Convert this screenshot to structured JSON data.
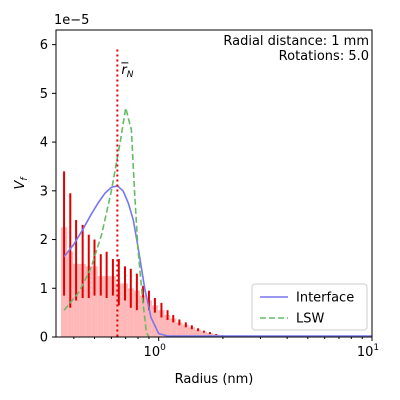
{
  "chart_data": {
    "type": "bar",
    "xlabel": "Radius (nm)",
    "ylabel": "V_f",
    "y_offset_text": "1e−5",
    "xscale": "log",
    "xlim": [
      0.33,
      10
    ],
    "ylim": [
      0,
      6.3
    ],
    "y_ticks": [
      "0",
      "1",
      "2",
      "3",
      "4",
      "5",
      "6"
    ],
    "x_ticks": [
      {
        "value": 1,
        "label": "10",
        "exp": "0"
      },
      {
        "value": 10,
        "label": "10",
        "exp": "1"
      }
    ],
    "annotation_lines": [
      "Radial distance: 1 mm",
      "Rotations: 5.0"
    ],
    "rbar": {
      "x": 0.64,
      "label_main": "r",
      "label_sub": "N"
    },
    "histogram": {
      "color": "#ffb3b3",
      "errorbar_color": "#e00000",
      "bins": [
        {
          "x": 0.36,
          "h": 2.25,
          "err_hi": 3.4,
          "err_lo": 0.85
        },
        {
          "x": 0.385,
          "h": 1.75,
          "err_hi": 2.95,
          "err_lo": 0.6
        },
        {
          "x": 0.41,
          "h": 1.5,
          "err_hi": 2.4,
          "err_lo": 0.75
        },
        {
          "x": 0.44,
          "h": 1.5,
          "err_hi": 2.3,
          "err_lo": 0.8
        },
        {
          "x": 0.47,
          "h": 1.45,
          "err_hi": 2.1,
          "err_lo": 0.8
        },
        {
          "x": 0.5,
          "h": 1.45,
          "err_hi": 2.0,
          "err_lo": 0.85
        },
        {
          "x": 0.535,
          "h": 1.25,
          "err_hi": 1.7,
          "err_lo": 0.85
        },
        {
          "x": 0.57,
          "h": 1.25,
          "err_hi": 1.75,
          "err_lo": 0.8
        },
        {
          "x": 0.61,
          "h": 1.25,
          "err_hi": 1.6,
          "err_lo": 0.85
        },
        {
          "x": 0.65,
          "h": 1.1,
          "err_hi": 1.6,
          "err_lo": 0.65
        },
        {
          "x": 0.695,
          "h": 1.1,
          "err_hi": 1.45,
          "err_lo": 0.75
        },
        {
          "x": 0.74,
          "h": 1.0,
          "err_hi": 1.4,
          "err_lo": 0.6
        },
        {
          "x": 0.79,
          "h": 0.95,
          "err_hi": 1.3,
          "err_lo": 0.55
        },
        {
          "x": 0.845,
          "h": 0.85,
          "err_hi": 1.05,
          "err_lo": 0.7
        },
        {
          "x": 0.9,
          "h": 0.75,
          "err_hi": 0.95,
          "err_lo": 0.55
        },
        {
          "x": 0.96,
          "h": 0.65,
          "err_hi": 0.8,
          "err_lo": 0.5
        },
        {
          "x": 1.03,
          "h": 0.55,
          "err_hi": 0.7,
          "err_lo": 0.4
        },
        {
          "x": 1.1,
          "h": 0.45,
          "err_hi": 0.55,
          "err_lo": 0.35
        },
        {
          "x": 1.17,
          "h": 0.38,
          "err_hi": 0.45,
          "err_lo": 0.3
        },
        {
          "x": 1.25,
          "h": 0.3,
          "err_hi": 0.36,
          "err_lo": 0.24
        },
        {
          "x": 1.34,
          "h": 0.25,
          "err_hi": 0.3,
          "err_lo": 0.2
        },
        {
          "x": 1.43,
          "h": 0.2,
          "err_hi": 0.24,
          "err_lo": 0.16
        },
        {
          "x": 1.53,
          "h": 0.15,
          "err_hi": 0.18,
          "err_lo": 0.12
        },
        {
          "x": 1.63,
          "h": 0.11,
          "err_hi": 0.13,
          "err_lo": 0.09
        },
        {
          "x": 1.74,
          "h": 0.08,
          "err_hi": 0.1,
          "err_lo": 0.06
        },
        {
          "x": 1.86,
          "h": 0.05,
          "err_hi": 0.06,
          "err_lo": 0.04
        },
        {
          "x": 1.99,
          "h": 0.03,
          "err_hi": 0.035,
          "err_lo": 0.025
        },
        {
          "x": 2.13,
          "h": 0.02,
          "err_hi": 0.022,
          "err_lo": 0.018
        }
      ]
    },
    "series": [
      {
        "name": "Interface",
        "color": "#7777ee",
        "style": "solid",
        "x": [
          0.36,
          0.4,
          0.44,
          0.48,
          0.52,
          0.56,
          0.6,
          0.64,
          0.68,
          0.72,
          0.76,
          0.8,
          0.86,
          0.92,
          1.0,
          1.1,
          1.3,
          1.6,
          2.0,
          3.0,
          5.0,
          10.0
        ],
        "y": [
          1.65,
          1.9,
          2.2,
          2.5,
          2.75,
          2.95,
          3.07,
          3.1,
          3.0,
          2.75,
          2.4,
          1.85,
          1.0,
          0.4,
          0.07,
          0.02,
          0.02,
          0.02,
          0.02,
          0.02,
          0.02,
          0.02
        ]
      },
      {
        "name": "LSW",
        "color": "#66bb66",
        "style": "dashed",
        "x": [
          0.36,
          0.42,
          0.48,
          0.54,
          0.6,
          0.66,
          0.7,
          0.745,
          0.77,
          0.8,
          0.84,
          0.875,
          0.9
        ],
        "y": [
          0.55,
          0.9,
          1.4,
          2.1,
          3.0,
          4.0,
          4.7,
          4.25,
          3.0,
          1.8,
          0.8,
          0.1,
          0.0
        ]
      }
    ],
    "legend": {
      "placement": "lower-right",
      "entries": [
        "Interface",
        "LSW"
      ]
    },
    "grid": false
  }
}
